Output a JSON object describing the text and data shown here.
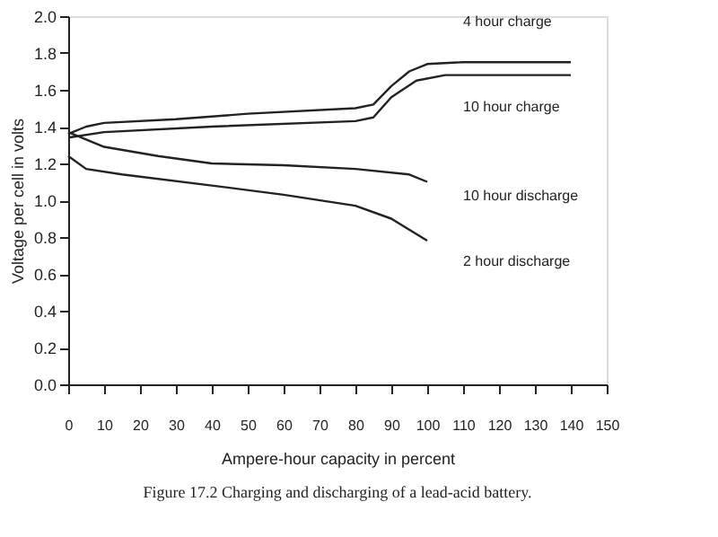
{
  "chart_data": {
    "type": "line",
    "xlabel": "Ampere-hour capacity in percent",
    "ylabel": "Voltage per cell in volts",
    "xlim": [
      0,
      150
    ],
    "ylim": [
      0,
      2
    ],
    "xticks": [
      0,
      10,
      20,
      30,
      40,
      50,
      60,
      70,
      80,
      90,
      100,
      110,
      120,
      130,
      140,
      150
    ],
    "yticks": [
      {
        "value": 0,
        "label": "0.0"
      },
      0.2,
      0.4,
      0.6,
      0.8,
      {
        "value": 1,
        "label": "1.0"
      },
      1.2,
      1.4,
      1.6,
      1.8,
      {
        "value": 2,
        "label": "2.0"
      }
    ],
    "grid": false,
    "legend": false,
    "marker": "none",
    "line_style": "solid",
    "series": [
      {
        "name": "4 hour charge",
        "color": "#222222",
        "x": [
          0,
          5,
          10,
          30,
          50,
          80,
          85,
          90,
          95,
          100,
          110,
          140
        ],
        "values": [
          1.36,
          1.4,
          1.42,
          1.44,
          1.47,
          1.5,
          1.52,
          1.62,
          1.7,
          1.74,
          1.75,
          1.75
        ]
      },
      {
        "name": "10 hour charge",
        "color": "#222222",
        "x": [
          0,
          10,
          40,
          80,
          85,
          90,
          97,
          105,
          140
        ],
        "values": [
          1.34,
          1.37,
          1.4,
          1.43,
          1.45,
          1.56,
          1.65,
          1.68,
          1.68
        ]
      },
      {
        "name": "10 hour discharge",
        "color": "#222222",
        "x": [
          0,
          10,
          25,
          40,
          60,
          80,
          95,
          100
        ],
        "values": [
          1.37,
          1.29,
          1.24,
          1.2,
          1.19,
          1.17,
          1.14,
          1.1
        ]
      },
      {
        "name": "2 hour discharge",
        "color": "#222222",
        "x": [
          0,
          5,
          15,
          40,
          60,
          80,
          90,
          100
        ],
        "values": [
          1.24,
          1.17,
          1.14,
          1.08,
          1.03,
          0.97,
          0.9,
          0.78
        ]
      }
    ],
    "annotations": [
      "Figure 17.2    Charging and discharging of a lead-acid battery."
    ]
  }
}
